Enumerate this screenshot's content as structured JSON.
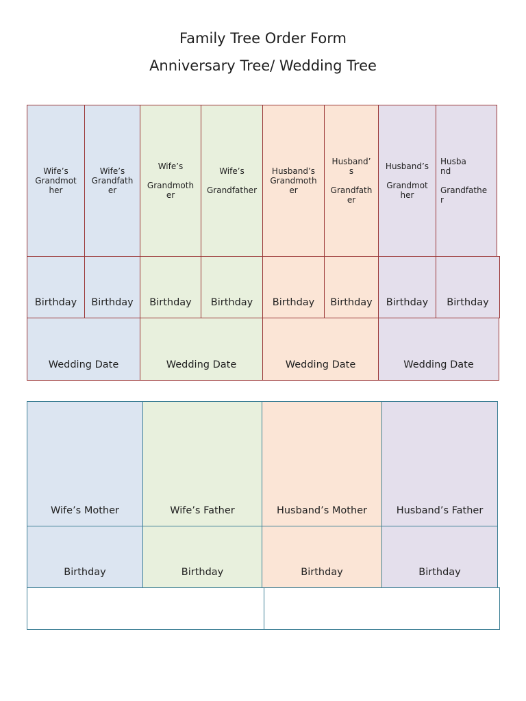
{
  "header": {
    "title": "Family Tree Order Form",
    "subtitle": "Anniversary Tree/ Wedding Tree"
  },
  "grandparents": {
    "names": [
      "Wife’s\nGrandmot\nher",
      "Wife’s\nGrandfath\ner",
      "Wife’s\n\nGrandmoth\ner",
      "Wife’s\n\nGrandfather",
      "Husband’s\nGrandmoth\ner",
      "Husband’\ns\n\nGrandfath\ner",
      "Husband’s\n\nGrandmot\nher",
      "Husba\nnd\n\nGrandfathe\nr"
    ],
    "birthday": "Birthday",
    "wedding": "Wedding Date"
  },
  "parents": {
    "names": [
      "Wife’s Mother",
      "Wife’s Father",
      "Husband’s Mother",
      "Husband’s Father"
    ],
    "birthday": "Birthday"
  },
  "colors": {
    "blue": "#dce5f1",
    "green": "#e8f0dd",
    "peach": "#fbe5d6",
    "purple": "#e4dfec",
    "border_red": "#9a3535",
    "border_teal": "#3d7f95"
  }
}
